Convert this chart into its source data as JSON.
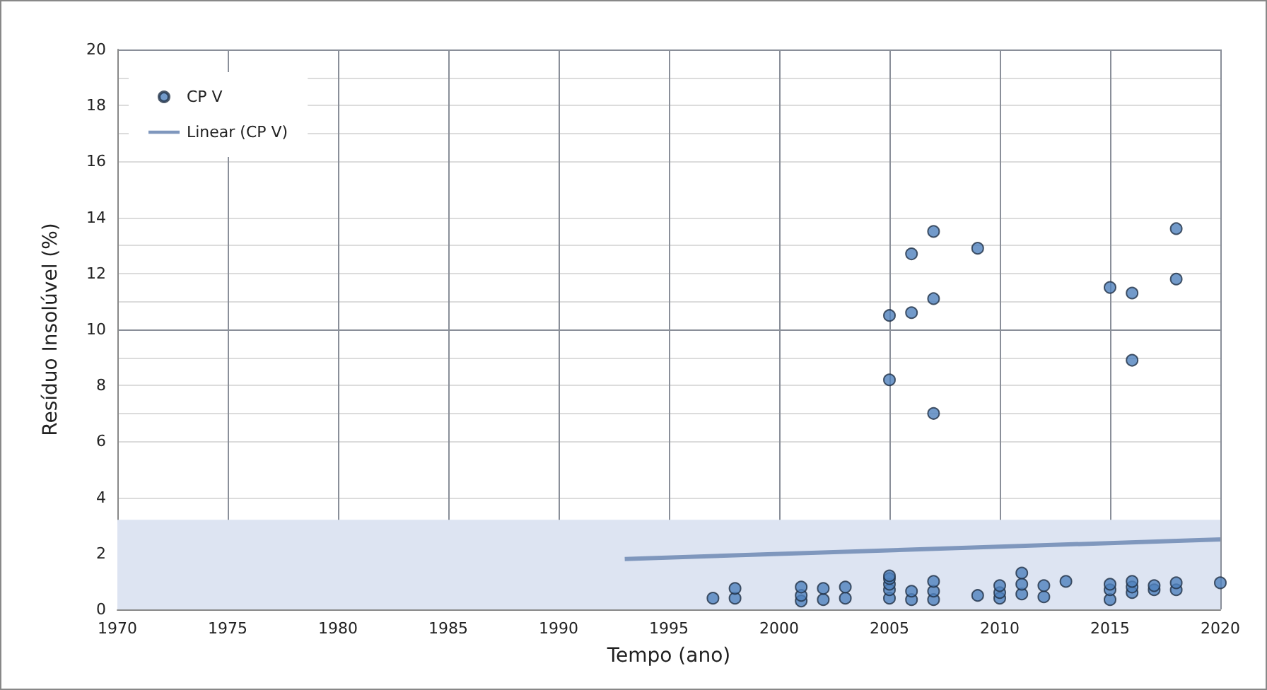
{
  "chart_data": {
    "type": "scatter",
    "xlabel": "Tempo (ano)",
    "ylabel": "Resíduo Insolúvel (%)",
    "xlim": [
      1970,
      2020
    ],
    "xticks": [
      1970,
      1975,
      1980,
      1985,
      1990,
      1995,
      2000,
      2005,
      2010,
      2015,
      2020
    ],
    "ylim": [
      0,
      20
    ],
    "yticks": [
      0,
      2,
      4,
      6,
      8,
      10,
      12,
      14,
      16,
      18,
      20
    ],
    "grid": true,
    "legend": "top left",
    "marker": "circle",
    "bands": [
      {
        "axis": "y",
        "from": 0,
        "to": 3.2,
        "color": "#dde4f2"
      }
    ],
    "series": [
      {
        "name": "CP V",
        "color": "#4f81bd",
        "x": [
          1997,
          1998,
          1998,
          2001,
          2001,
          2001,
          2002,
          2002,
          2003,
          2003,
          2005,
          2005,
          2005,
          2005,
          2005,
          2005,
          2005,
          2006,
          2006,
          2006,
          2006,
          2007,
          2007,
          2007,
          2007,
          2007,
          2007,
          2009,
          2009,
          2010,
          2010,
          2010,
          2011,
          2011,
          2011,
          2012,
          2012,
          2013,
          2015,
          2015,
          2015,
          2015,
          2016,
          2016,
          2016,
          2016,
          2016,
          2017,
          2017,
          2018,
          2018,
          2018,
          2018,
          2020
        ],
        "values": [
          0.4,
          0.4,
          0.75,
          0.3,
          0.5,
          0.8,
          0.35,
          0.75,
          0.4,
          0.8,
          0.4,
          0.7,
          0.9,
          1.1,
          1.2,
          8.2,
          10.5,
          0.35,
          0.65,
          10.6,
          12.7,
          0.35,
          0.65,
          1.0,
          7.0,
          11.1,
          13.5,
          0.5,
          12.9,
          0.4,
          0.6,
          0.85,
          0.55,
          0.9,
          1.3,
          0.45,
          0.85,
          1.0,
          0.35,
          0.7,
          0.9,
          11.5,
          0.6,
          0.8,
          1.0,
          8.9,
          11.3,
          0.7,
          0.85,
          0.7,
          0.95,
          11.8,
          13.6,
          0.95
        ]
      },
      {
        "name": "Linear (CP V)",
        "type": "line",
        "color": "#7f97bd",
        "line_style": "solid",
        "marker": "none",
        "x": [
          1993,
          2020
        ],
        "values": [
          1.8,
          2.5
        ]
      }
    ]
  }
}
